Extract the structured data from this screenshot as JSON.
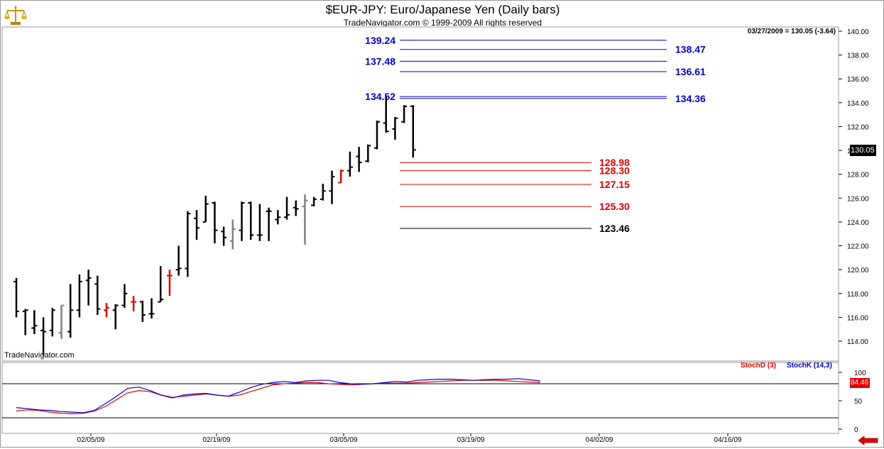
{
  "header": {
    "title": "$EUR-JPY:  Euro/Japanese Yen  (Daily bars)",
    "subtitle": "TradeNavigator.com © 1999-2009 All rights reserved",
    "quote": "03/27/2009 = 130.05 (-3.64)",
    "watermark": "TradeNavigator.com"
  },
  "logo_icon": "gold-balance-scale-icon",
  "nav_icon": "red-left-arrow-icon",
  "colors": {
    "bar_default": "#000000",
    "bar_red": "#e00000",
    "bar_gray": "#808080",
    "bar_green": "#00cc00",
    "fib_blue": "#0000cc",
    "fib_red": "#e00000",
    "stoch_d": "#e00000",
    "stoch_k": "#0000cc",
    "grid": "#c0c0c0"
  },
  "chart_data": [
    {
      "type": "bar",
      "title": "$EUR-JPY:  Euro/Japanese Yen  (Daily bars)",
      "ylim": [
        112,
        140
      ],
      "y_ticks": [
        114,
        116,
        118,
        120,
        122,
        124,
        126,
        128,
        130,
        132,
        134,
        136,
        138,
        140
      ],
      "y_tick_labels": [
        "114.00",
        "116.00",
        "118.00",
        "120.00",
        "122.00",
        "124.00",
        "126.00",
        "128.00",
        "130.00",
        "132.00",
        "134.00",
        "136.00",
        "138.00",
        "140.00"
      ],
      "x_tick_labels": [
        "02/05/09",
        "02/19/09",
        "03/05/09",
        "03/19/09",
        "04/02/09",
        "04/16/09"
      ],
      "last_value_label": "130.05",
      "ohlc": [
        {
          "o": 119.0,
          "h": 119.3,
          "l": 116.0,
          "c": 116.5,
          "color": "black"
        },
        {
          "o": 116.5,
          "h": 116.7,
          "l": 114.5,
          "c": 116.6,
          "color": "black"
        },
        {
          "o": 115.1,
          "h": 116.6,
          "l": 114.6,
          "c": 115.3,
          "color": "black"
        },
        {
          "o": 114.9,
          "h": 116.0,
          "l": 112.8,
          "c": 114.8,
          "color": "black"
        },
        {
          "o": 114.9,
          "h": 116.8,
          "l": 114.4,
          "c": 116.6,
          "color": "black"
        },
        {
          "o": 114.7,
          "h": 117.0,
          "l": 114.2,
          "c": 117.0,
          "color": "gray"
        },
        {
          "o": 114.8,
          "h": 118.8,
          "l": 114.3,
          "c": 116.6,
          "color": "black"
        },
        {
          "o": 116.6,
          "h": 119.6,
          "l": 116.0,
          "c": 119.0,
          "color": "black"
        },
        {
          "o": 119.1,
          "h": 120.0,
          "l": 117.0,
          "c": 119.3,
          "color": "black"
        },
        {
          "o": 118.8,
          "h": 119.5,
          "l": 116.2,
          "c": 116.7,
          "color": "black"
        },
        {
          "o": 116.6,
          "h": 117.2,
          "l": 116.0,
          "c": 116.8,
          "color": "red"
        },
        {
          "o": 116.6,
          "h": 117.1,
          "l": 115.0,
          "c": 117.0,
          "color": "black"
        },
        {
          "o": 117.0,
          "h": 118.8,
          "l": 116.8,
          "c": 118.0,
          "color": "black"
        },
        {
          "o": 117.3,
          "h": 117.8,
          "l": 116.5,
          "c": 117.3,
          "color": "red"
        },
        {
          "o": 117.3,
          "h": 117.4,
          "l": 115.6,
          "c": 116.2,
          "color": "black"
        },
        {
          "o": 116.3,
          "h": 117.6,
          "l": 115.9,
          "c": 116.3,
          "color": "black"
        },
        {
          "o": 117.3,
          "h": 120.3,
          "l": 117.3,
          "c": 117.5,
          "color": "black"
        },
        {
          "o": 119.5,
          "h": 120.0,
          "l": 117.8,
          "c": 119.5,
          "color": "red"
        },
        {
          "o": 120.0,
          "h": 122.0,
          "l": 119.5,
          "c": 120.1,
          "color": "black"
        },
        {
          "o": 120.1,
          "h": 124.9,
          "l": 119.4,
          "c": 124.7,
          "color": "black"
        },
        {
          "o": 124.3,
          "h": 125.0,
          "l": 122.5,
          "c": 123.5,
          "color": "black"
        },
        {
          "o": 124.0,
          "h": 126.2,
          "l": 124.0,
          "c": 125.5,
          "color": "black"
        },
        {
          "o": 125.6,
          "h": 125.7,
          "l": 122.2,
          "c": 123.3,
          "color": "black"
        },
        {
          "o": 123.2,
          "h": 123.6,
          "l": 122.0,
          "c": 122.7,
          "color": "black"
        },
        {
          "o": 122.4,
          "h": 124.2,
          "l": 121.7,
          "c": 123.4,
          "color": "gray"
        },
        {
          "o": 123.3,
          "h": 125.7,
          "l": 122.4,
          "c": 125.6,
          "color": "black"
        },
        {
          "o": 125.6,
          "h": 125.7,
          "l": 122.5,
          "c": 122.9,
          "color": "black"
        },
        {
          "o": 122.9,
          "h": 125.5,
          "l": 122.4,
          "c": 122.9,
          "color": "black"
        },
        {
          "o": 124.9,
          "h": 125.2,
          "l": 122.4,
          "c": 124.9,
          "color": "black"
        },
        {
          "o": 124.2,
          "h": 125.0,
          "l": 123.8,
          "c": 124.4,
          "color": "black"
        },
        {
          "o": 124.4,
          "h": 126.1,
          "l": 124.2,
          "c": 124.6,
          "color": "black"
        },
        {
          "o": 125.2,
          "h": 125.8,
          "l": 124.5,
          "c": 125.1,
          "color": "black"
        },
        {
          "o": 125.3,
          "h": 126.3,
          "l": 122.1,
          "c": 125.8,
          "color": "gray"
        },
        {
          "o": 125.4,
          "h": 126.1,
          "l": 125.3,
          "c": 125.9,
          "color": "black"
        },
        {
          "o": 125.9,
          "h": 127.2,
          "l": 125.8,
          "c": 126.6,
          "color": "black"
        },
        {
          "o": 126.6,
          "h": 128.3,
          "l": 125.5,
          "c": 127.8,
          "color": "black"
        },
        {
          "o": 127.3,
          "h": 128.4,
          "l": 127.3,
          "c": 128.3,
          "color": "red"
        },
        {
          "o": 128.3,
          "h": 129.9,
          "l": 127.8,
          "c": 128.6,
          "color": "black"
        },
        {
          "o": 129.5,
          "h": 130.3,
          "l": 128.2,
          "c": 129.0,
          "color": "black"
        },
        {
          "o": 129.1,
          "h": 130.5,
          "l": 129.0,
          "c": 130.4,
          "color": "black"
        },
        {
          "o": 130.2,
          "h": 132.5,
          "l": 130.1,
          "c": 132.4,
          "color": "black"
        },
        {
          "o": 132.3,
          "h": 134.5,
          "l": 131.5,
          "c": 131.6,
          "color": "black"
        },
        {
          "o": 131.8,
          "h": 132.8,
          "l": 130.9,
          "c": 132.7,
          "color": "black"
        },
        {
          "o": 132.4,
          "h": 133.8,
          "l": 132.3,
          "c": 133.7,
          "color": "black"
        },
        {
          "o": 133.7,
          "h": 133.8,
          "l": 129.4,
          "c": 130.05,
          "color": "black"
        }
      ],
      "fib_levels": [
        {
          "label": "139.24",
          "value": 139.24,
          "color": "blue",
          "side": "left"
        },
        {
          "label": "138.47",
          "value": 138.47,
          "color": "blue",
          "side": "right"
        },
        {
          "label": "137.48",
          "value": 137.48,
          "color": "blue",
          "side": "left"
        },
        {
          "label": "136.61",
          "value": 136.61,
          "color": "blue",
          "side": "right"
        },
        {
          "label": "134.52",
          "value": 134.52,
          "color": "blue",
          "side": "left"
        },
        {
          "label": "134.36",
          "value": 134.36,
          "color": "blue",
          "side": "right"
        },
        {
          "label": "128.98",
          "value": 128.98,
          "color": "red",
          "side": "right"
        },
        {
          "label": "128.30",
          "value": 128.3,
          "color": "red",
          "side": "right"
        },
        {
          "label": "127.15",
          "value": 127.15,
          "color": "red",
          "side": "right"
        },
        {
          "label": "125.30",
          "value": 125.3,
          "color": "red",
          "side": "right"
        },
        {
          "label": "123.46",
          "value": 123.46,
          "color": "black",
          "side": "right"
        }
      ]
    },
    {
      "type": "line",
      "ylim": [
        0,
        100
      ],
      "y_ticks": [
        0,
        50,
        100
      ],
      "y_tick_labels": [
        "0",
        "50",
        "100"
      ],
      "hlines": [
        20,
        80
      ],
      "last_value_label": "84.46",
      "series": [
        {
          "name": "StochD (3)",
          "values": [
            32,
            34,
            33,
            30,
            28,
            27,
            28,
            32,
            40,
            52,
            64,
            68,
            66,
            60,
            56,
            58,
            60,
            62,
            60,
            58,
            60,
            66,
            72,
            78,
            80,
            81,
            82,
            82,
            80,
            79,
            78,
            79,
            80,
            81,
            81,
            81,
            82,
            83,
            84,
            85,
            86,
            86,
            86,
            86,
            85,
            84,
            83,
            82
          ]
        },
        {
          "name": "StochK (14,3)",
          "values": [
            38,
            36,
            34,
            33,
            31,
            30,
            29,
            33,
            45,
            58,
            72,
            74,
            68,
            60,
            55,
            60,
            62,
            63,
            60,
            58,
            65,
            73,
            79,
            82,
            84,
            82,
            85,
            86,
            86,
            82,
            80,
            79,
            80,
            82,
            84,
            83,
            86,
            87,
            88,
            88,
            87,
            86,
            87,
            88,
            88,
            89,
            87,
            85
          ]
        }
      ]
    }
  ]
}
